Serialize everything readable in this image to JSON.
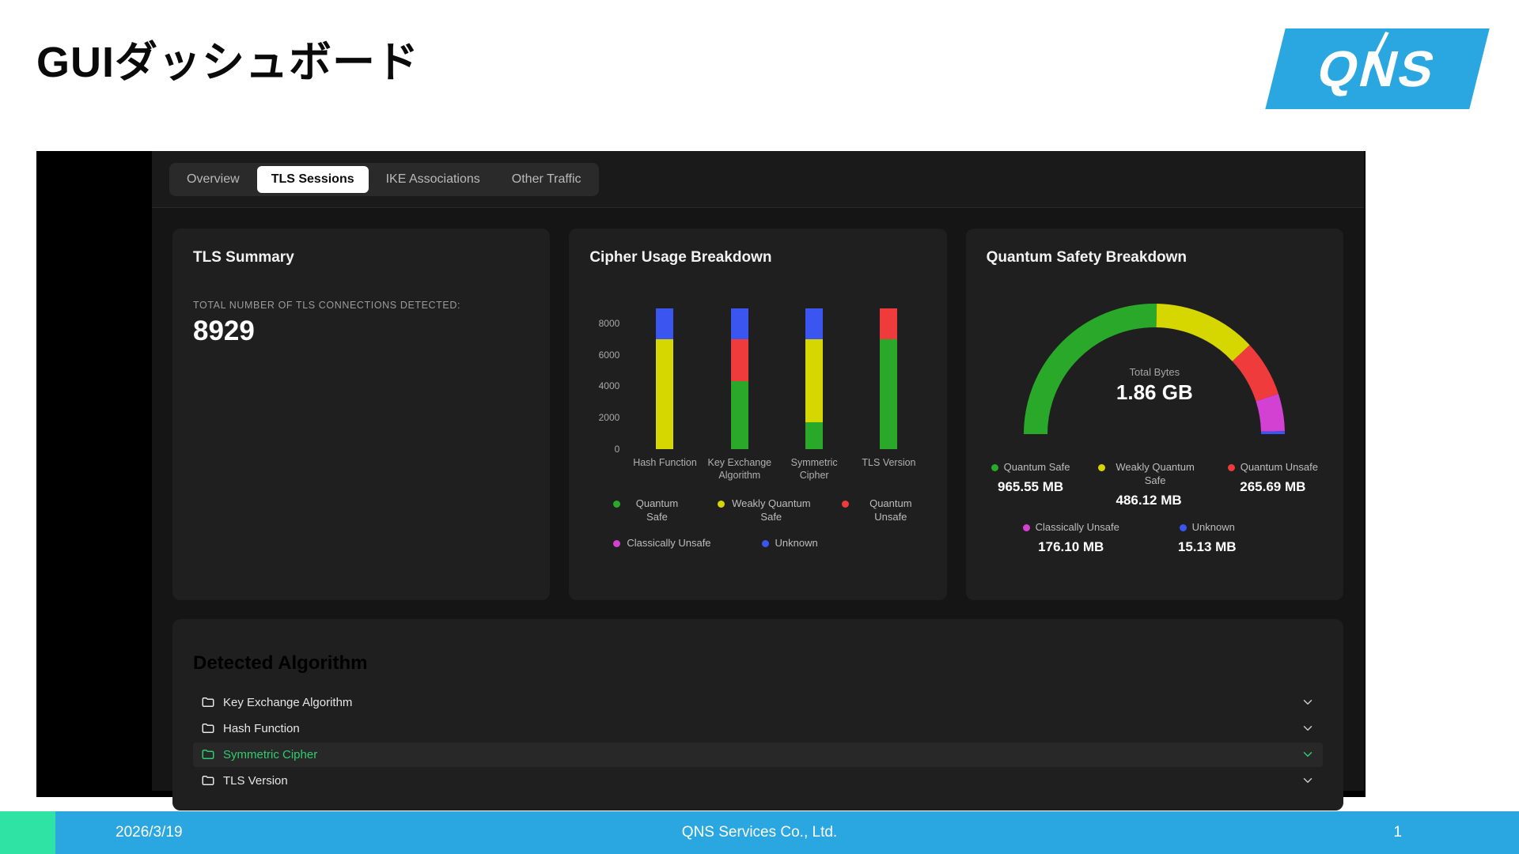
{
  "slide": {
    "title": "GUIダッシュボード",
    "logo_text": "QNS",
    "footer": {
      "date": "2026/3/19",
      "company": "QNS Services Co., Ltd.",
      "page_number": "1"
    }
  },
  "dashboard": {
    "tabs": [
      {
        "label": "Overview",
        "active": false
      },
      {
        "label": "TLS Sessions",
        "active": true
      },
      {
        "label": "IKE Associations",
        "active": false
      },
      {
        "label": "Other Traffic",
        "active": false
      }
    ],
    "tls_summary": {
      "title": "TLS Summary",
      "caption": "TOTAL NUMBER OF TLS CONNECTIONS DETECTED:",
      "value": "8929"
    },
    "detected": {
      "title": "Detected Algorithm",
      "rows": [
        {
          "label": "Key Exchange Algorithm",
          "selected": false
        },
        {
          "label": "Hash Function",
          "selected": false
        },
        {
          "label": "Symmetric Cipher",
          "selected": true
        },
        {
          "label": "TLS Version",
          "selected": false
        }
      ]
    }
  },
  "colors": {
    "quantum_safe": "#2aa82a",
    "weakly_quantum_safe": "#d6d600",
    "quantum_unsafe": "#ef3b3b",
    "classically_unsafe": "#d341d3",
    "unknown": "#3b55f0",
    "accent_blue": "#2aa7e0",
    "accent_green": "#2fe3a5",
    "selected_row_green": "#2ecc71"
  },
  "chart_data": [
    {
      "type": "bar",
      "stacked": true,
      "title": "Cipher Usage Breakdown",
      "categories": [
        "Hash Function",
        "Key Exchange Algorithm",
        "Symmetric Cipher",
        "TLS Version"
      ],
      "series": [
        {
          "name": "Quantum Safe",
          "color_key": "quantum_safe",
          "values": [
            0,
            4300,
            1700,
            7000
          ]
        },
        {
          "name": "Weakly Quantum Safe",
          "color_key": "weakly_quantum_safe",
          "values": [
            7000,
            0,
            5300,
            0
          ]
        },
        {
          "name": "Quantum Unsafe",
          "color_key": "quantum_unsafe",
          "values": [
            0,
            2700,
            0,
            1929
          ]
        },
        {
          "name": "Classically Unsafe",
          "color_key": "classically_unsafe",
          "values": [
            0,
            0,
            0,
            0
          ]
        },
        {
          "name": "Unknown",
          "color_key": "unknown",
          "values": [
            1929,
            1929,
            1929,
            0
          ]
        }
      ],
      "yticks": [
        0,
        2000,
        4000,
        6000,
        8000
      ],
      "ylim": [
        0,
        9300
      ],
      "legend_rows": [
        [
          "Quantum Safe",
          "Weakly Quantum Safe",
          "Quantum Unsafe"
        ],
        [
          "Classically Unsafe",
          "Unknown"
        ]
      ],
      "grid": false,
      "legend_position": "bottom"
    },
    {
      "type": "pie",
      "variant": "half-donut-gauge",
      "title": "Quantum Safety Breakdown",
      "center_label": "Total Bytes",
      "center_value": "1.86 GB",
      "slices": [
        {
          "label": "Quantum Safe",
          "color_key": "quantum_safe",
          "value_mb": 965.55,
          "display": "965.55 MB"
        },
        {
          "label": "Weakly Quantum Safe",
          "color_key": "weakly_quantum_safe",
          "value_mb": 486.12,
          "display": "486.12 MB"
        },
        {
          "label": "Quantum Unsafe",
          "color_key": "quantum_unsafe",
          "value_mb": 265.69,
          "display": "265.69 MB"
        },
        {
          "label": "Classically Unsafe",
          "color_key": "classically_unsafe",
          "value_mb": 176.1,
          "display": "176.10 MB"
        },
        {
          "label": "Unknown",
          "color_key": "unknown",
          "value_mb": 15.13,
          "display": "15.13 MB"
        }
      ],
      "legend_rows": [
        [
          0,
          1,
          2
        ],
        [
          3,
          4
        ]
      ]
    }
  ]
}
